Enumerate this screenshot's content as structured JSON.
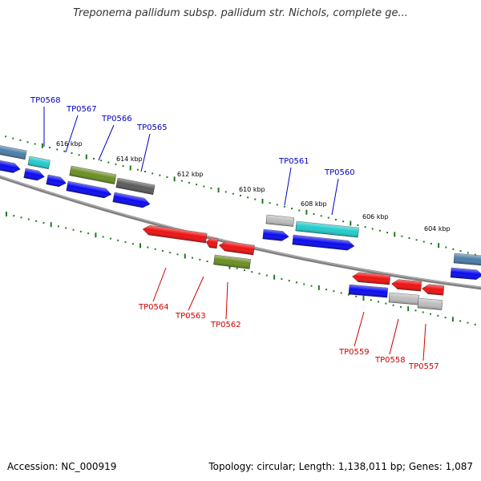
{
  "title": "Treponema pallidum subsp. pallidum str. Nichols, complete ge...",
  "footer": {
    "accession": "Accession: NC_000919",
    "summary": "Topology: circular; Length: 1,138,011 bp; Genes: 1,087"
  },
  "colors": {
    "backbone": "#808080",
    "ticks": "#1e7b1e",
    "label_top_strand": "#0000c0",
    "label_bottom_strand": "#d00000",
    "blue": "#0a0af0",
    "cyan": "#22cccc",
    "steelblue": "#4a7ea8",
    "olive": "#6b8e23",
    "darkgray": "#5a5a5a",
    "lightgray": "#bdbdbd",
    "red": "#ee1111"
  },
  "scale_labels": [
    "616 kbp",
    "614 kbp",
    "612 kbp",
    "610 kbp",
    "608 kbp",
    "606 kbp",
    "604 kbp"
  ],
  "genes_top": [
    "TP0568",
    "TP0567",
    "TP0566",
    "TP0565",
    "TP0561",
    "TP0560"
  ],
  "genes_bottom": [
    "TP0564",
    "TP0563",
    "TP0562",
    "TP0559",
    "TP0558",
    "TP0557"
  ]
}
